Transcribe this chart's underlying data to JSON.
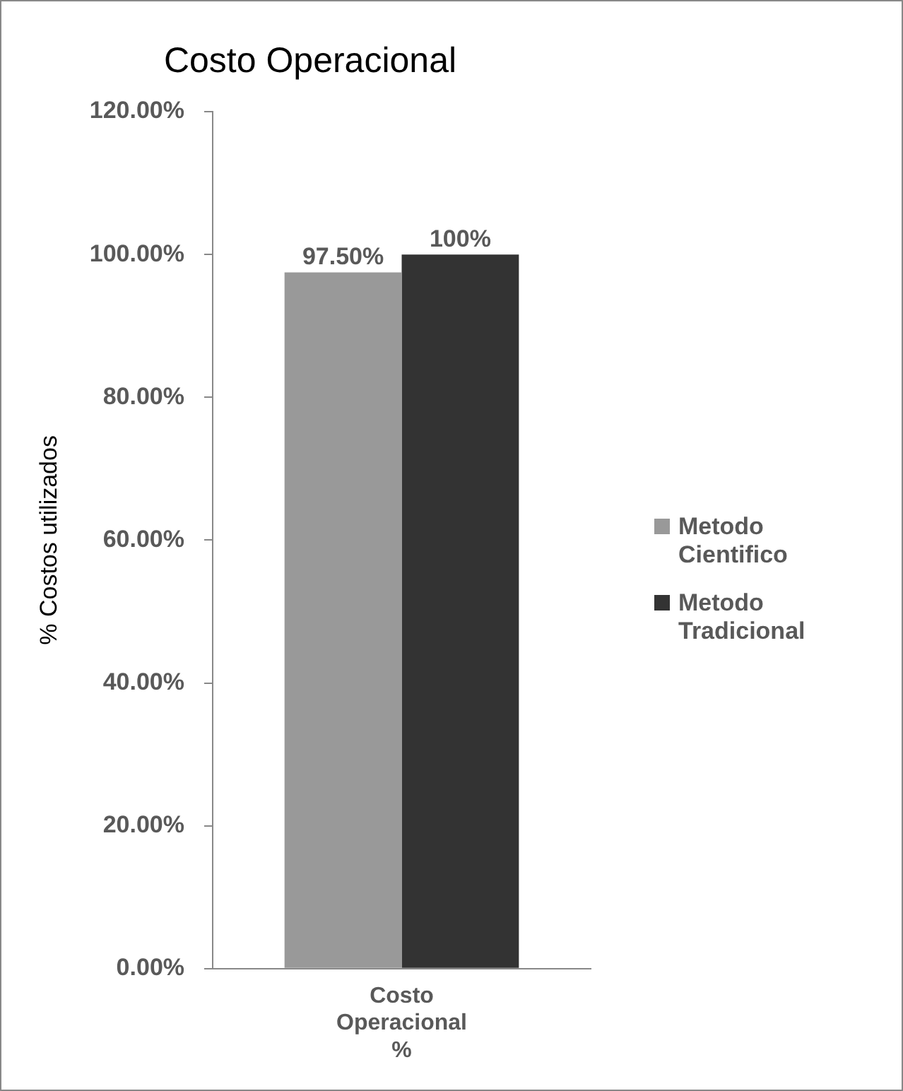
{
  "chart_data": {
    "type": "bar",
    "title": "Costo Operacional",
    "ylabel": "% Costos utilizados",
    "categories": [
      "Costo Operacional %"
    ],
    "series": [
      {
        "name": "Metodo Cientifico",
        "color": "#999999",
        "values": [
          97.5
        ],
        "value_labels": [
          "97.50%"
        ]
      },
      {
        "name": "Metodo Tradicional",
        "color": "#333333",
        "values": [
          100
        ],
        "value_labels": [
          "100%"
        ]
      }
    ],
    "ylim": [
      0,
      120
    ],
    "yticks": [
      {
        "value": 0,
        "label": "0.00%"
      },
      {
        "value": 20,
        "label": "20.00%"
      },
      {
        "value": 40,
        "label": "40.00%"
      },
      {
        "value": 60,
        "label": "60.00%"
      },
      {
        "value": 80,
        "label": "80.00%"
      },
      {
        "value": 100,
        "label": "100.00%"
      },
      {
        "value": 120,
        "label": "120.00%"
      }
    ],
    "grid": false,
    "legend": "right"
  }
}
